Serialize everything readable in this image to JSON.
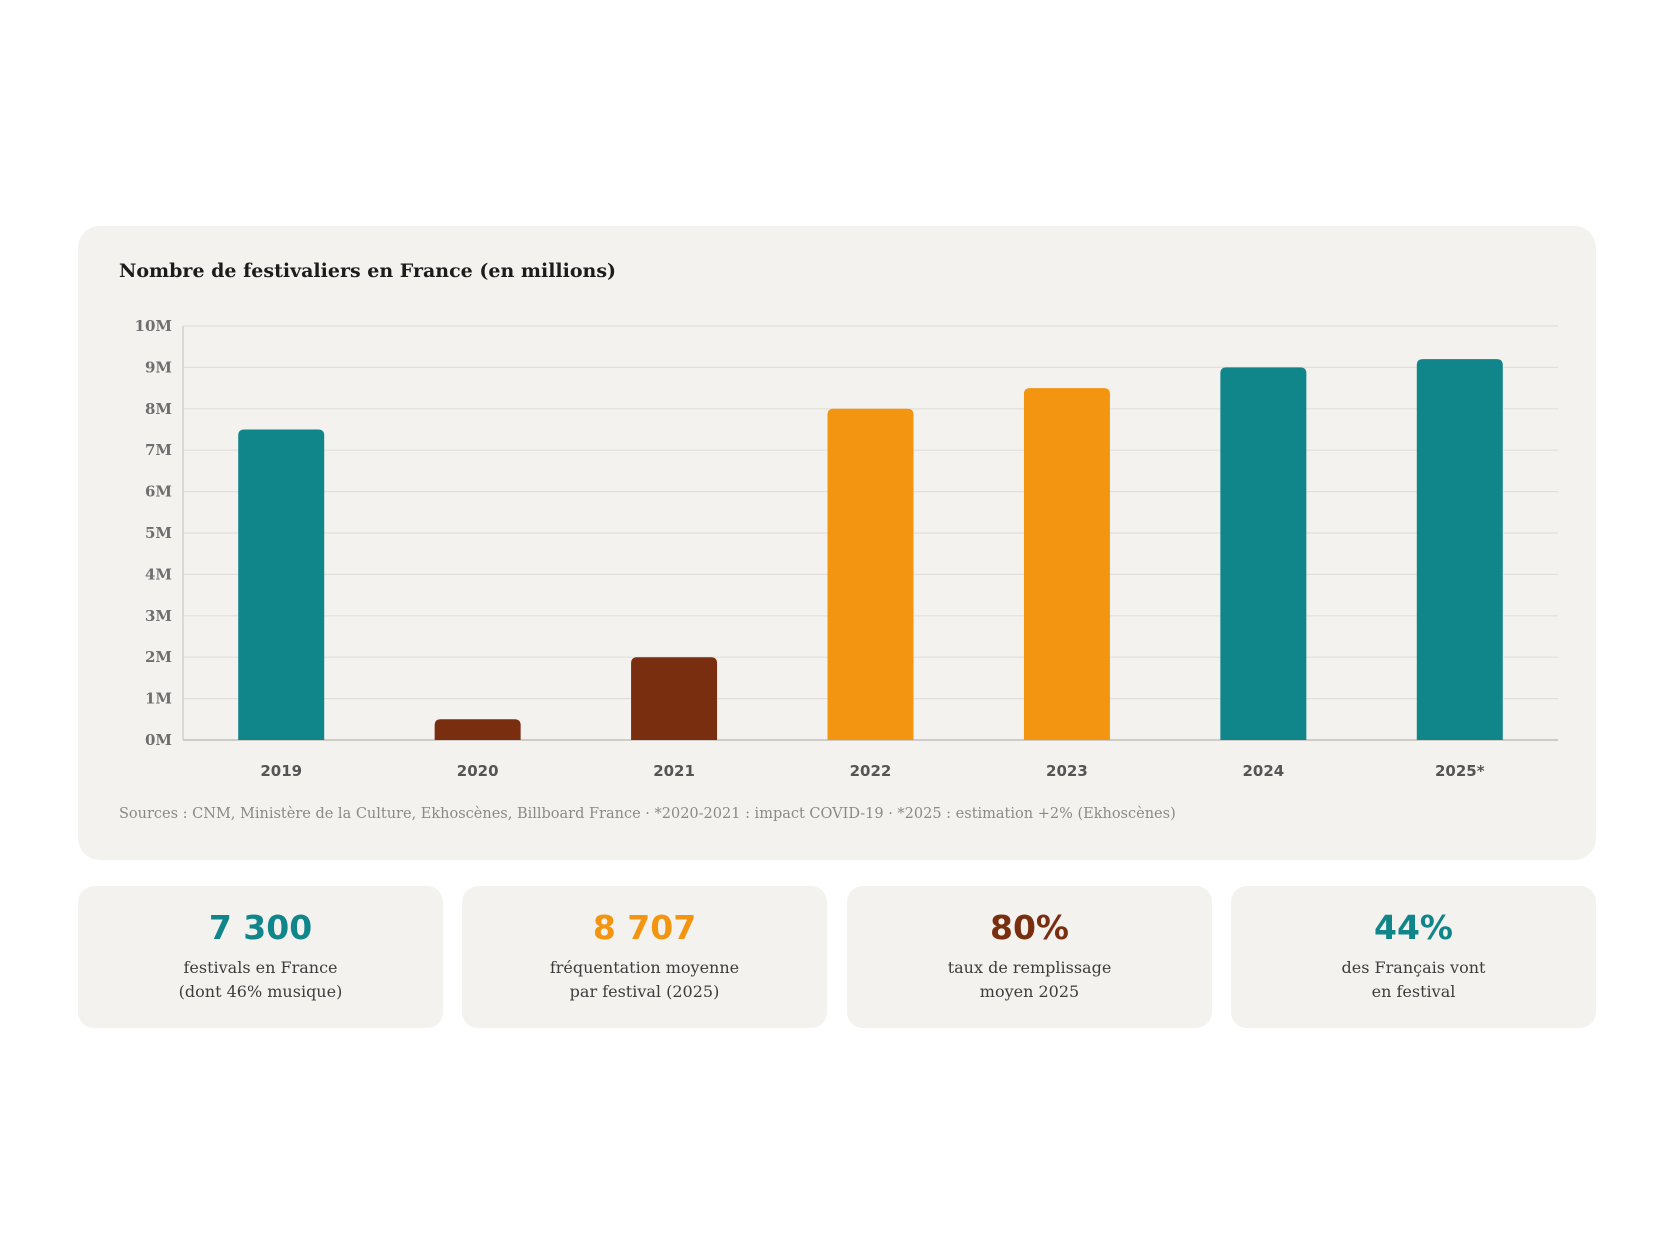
{
  "chart_data": {
    "type": "bar",
    "title": "Nombre de festivaliers en France (en millions)",
    "categories": [
      "2019",
      "2020",
      "2021",
      "2022",
      "2023",
      "2024",
      "2025*"
    ],
    "values": [
      7.5,
      0.5,
      2.0,
      8.0,
      8.5,
      9.0,
      9.2
    ],
    "bar_colors": [
      "#10868a",
      "#7a2e10",
      "#7a2e10",
      "#f39510",
      "#f39510",
      "#10868a",
      "#10868a"
    ],
    "ylim": [
      0,
      10
    ],
    "yticks": [
      "0M",
      "1M",
      "2M",
      "3M",
      "4M",
      "5M",
      "6M",
      "7M",
      "8M",
      "9M",
      "10M"
    ],
    "grid": true,
    "source": "Sources : CNM, Ministère de la Culture, Ekhoscènes, Billboard France · *2020-2021 : impact COVID-19 · *2025 : estimation +2% (Ekhoscènes)"
  },
  "stats": [
    {
      "value": "7 300",
      "line1": "festivals en France",
      "line2": "(dont 46% musique)",
      "color": "#10868a"
    },
    {
      "value": "8 707",
      "line1": "fréquentation moyenne",
      "line2": "par festival (2025)",
      "color": "#f39510"
    },
    {
      "value": "80%",
      "line1": "taux de remplissage",
      "line2": "moyen 2025",
      "color": "#7a2e10"
    },
    {
      "value": "44%",
      "line1": "des Français vont",
      "line2": "en festival",
      "color": "#10868a"
    }
  ]
}
